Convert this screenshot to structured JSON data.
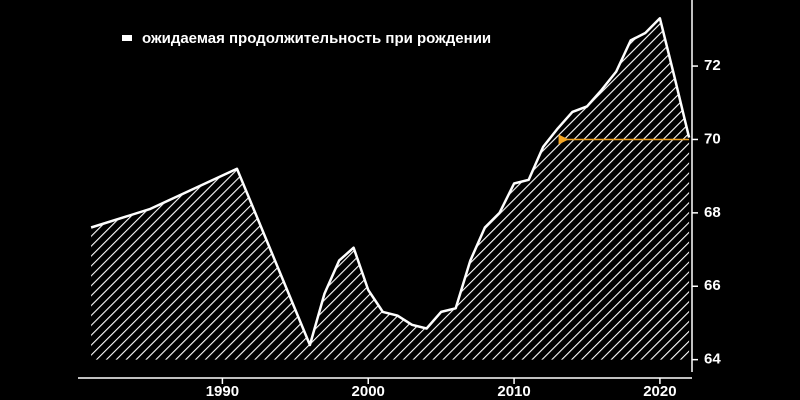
{
  "chart_data": {
    "type": "area",
    "legend": "ожидаемая продолжительность при рождении",
    "legend_position": "top-left",
    "x": [
      1981,
      1985,
      1991,
      1996,
      1997,
      1998,
      1999,
      2000,
      2001,
      2002,
      2003,
      2004,
      2005,
      2006,
      2007,
      2008,
      2009,
      2010,
      2011,
      2012,
      2013,
      2014,
      2015,
      2016,
      2017,
      2018,
      2019,
      2020,
      2021,
      2022
    ],
    "values": [
      67.6,
      68.1,
      69.2,
      64.4,
      65.8,
      66.7,
      67.05,
      65.9,
      65.3,
      65.2,
      64.95,
      64.85,
      65.3,
      65.4,
      66.7,
      67.6,
      68.0,
      68.8,
      68.9,
      69.8,
      70.3,
      70.75,
      70.9,
      71.35,
      71.85,
      72.7,
      72.9,
      73.3,
      71.7,
      70.05
    ],
    "color": "#ffffff",
    "xlim": [
      1980.1,
      2022.2
    ],
    "xticks": [
      1990,
      2000,
      2010,
      2020
    ],
    "ylim": [
      63.5,
      73.8
    ],
    "yticks": [
      64,
      66,
      68,
      70,
      72
    ],
    "arrow": {
      "x": [
        2022,
        2013.6
      ],
      "y": 70,
      "color": "#f5a623"
    }
  }
}
